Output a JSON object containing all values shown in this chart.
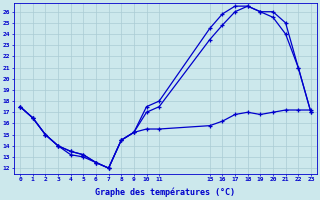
{
  "title": "Graphe des températures (°C)",
  "bg_color": "#cce8ec",
  "grid_color": "#aaccd4",
  "line_color": "#0000cc",
  "xlim": [
    -0.5,
    23.5
  ],
  "ylim": [
    11.5,
    26.8
  ],
  "x_ticks": [
    0,
    1,
    2,
    3,
    4,
    5,
    6,
    7,
    8,
    9,
    10,
    11,
    15,
    16,
    17,
    18,
    19,
    20,
    21,
    22,
    23
  ],
  "x_tick_labels": [
    "0",
    "1",
    "2",
    "3",
    "4",
    "5",
    "6",
    "7",
    "8",
    "9",
    "10",
    "11",
    "15",
    "16",
    "17",
    "18",
    "19",
    "20",
    "21",
    "22",
    "23"
  ],
  "y_ticks": [
    12,
    13,
    14,
    15,
    16,
    17,
    18,
    19,
    20,
    21,
    22,
    23,
    24,
    25,
    26
  ],
  "line1_x": [
    0,
    1,
    2,
    3,
    4,
    5,
    6,
    7,
    8,
    9,
    10,
    11,
    15,
    16,
    17,
    18,
    19,
    20,
    21,
    22,
    23
  ],
  "line1_y": [
    17.5,
    16.5,
    15.0,
    14.0,
    13.5,
    13.2,
    12.5,
    12.0,
    14.5,
    15.2,
    17.5,
    18.0,
    24.5,
    25.8,
    26.5,
    26.5,
    26.0,
    26.0,
    25.0,
    21.0,
    17.0
  ],
  "line2_x": [
    0,
    1,
    2,
    3,
    4,
    5,
    6,
    7,
    8,
    9,
    10,
    11,
    15,
    16,
    17,
    18,
    19,
    20,
    21,
    22,
    23
  ],
  "line2_y": [
    17.5,
    16.5,
    15.0,
    14.0,
    13.5,
    13.2,
    12.5,
    12.0,
    14.5,
    15.2,
    17.0,
    17.5,
    23.5,
    24.8,
    26.0,
    26.5,
    26.0,
    25.5,
    24.0,
    21.0,
    17.0
  ],
  "line3_x": [
    0,
    1,
    2,
    3,
    4,
    5,
    6,
    7,
    8,
    9,
    10,
    11,
    15,
    16,
    17,
    18,
    19,
    20,
    21,
    22,
    23
  ],
  "line3_y": [
    17.5,
    16.5,
    15.0,
    14.0,
    13.2,
    13.0,
    12.5,
    12.0,
    14.5,
    15.2,
    15.5,
    15.5,
    15.8,
    16.2,
    16.8,
    17.0,
    16.8,
    17.0,
    17.2,
    17.2,
    17.2
  ]
}
